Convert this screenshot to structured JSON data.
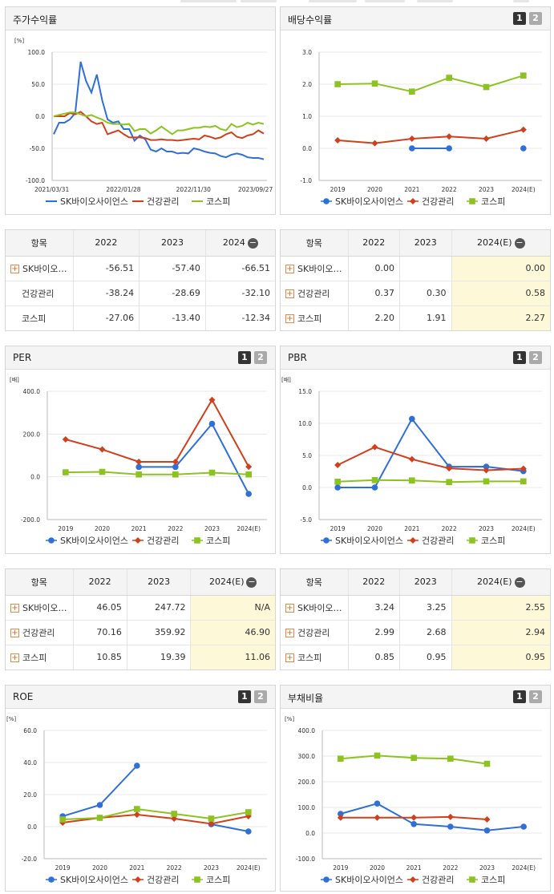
{
  "colors": {
    "sk": "#2f6fd8",
    "health": "#d0401c",
    "kospi": "#8cc321"
  },
  "buttons": {
    "one": "1",
    "two": "2"
  },
  "legend": {
    "sk": "SK바이오사이언스",
    "health": "건강관리",
    "kospi": "코스피"
  },
  "panels": {
    "stock": {
      "title": "주가수익률"
    },
    "div": {
      "title": "배당수익률"
    },
    "per": {
      "title": "PER"
    },
    "pbr": {
      "title": "PBR"
    },
    "roe": {
      "title": "ROE"
    },
    "debt": {
      "title": "부채비율"
    }
  },
  "tables": {
    "stock": {
      "h": [
        "항목",
        "2022",
        "2023",
        "2024"
      ],
      "rows": [
        [
          "SK바이오…",
          "-56.51",
          "-57.40",
          "-66.51"
        ],
        [
          "건강관리",
          "-38.24",
          "-28.69",
          "-32.10"
        ],
        [
          "코스피",
          "-27.06",
          "-13.40",
          "-12.34"
        ]
      ]
    },
    "div": {
      "h": [
        "항목",
        "2022",
        "2023",
        "2024(E)"
      ],
      "rows": [
        [
          "SK바이오…",
          "0.00",
          "",
          "0.00"
        ],
        [
          "건강관리",
          "0.37",
          "0.30",
          "0.58"
        ],
        [
          "코스피",
          "2.20",
          "1.91",
          "2.27"
        ]
      ]
    },
    "per": {
      "h": [
        "항목",
        "2022",
        "2023",
        "2024(E)"
      ],
      "rows": [
        [
          "SK바이오…",
          "46.05",
          "247.72",
          "N/A"
        ],
        [
          "건강관리",
          "70.16",
          "359.92",
          "46.90"
        ],
        [
          "코스피",
          "10.85",
          "19.39",
          "11.06"
        ]
      ]
    },
    "pbr": {
      "h": [
        "항목",
        "2022",
        "2023",
        "2024(E)"
      ],
      "rows": [
        [
          "SK바이오…",
          "3.24",
          "3.25",
          "2.55"
        ],
        [
          "건강관리",
          "2.99",
          "2.68",
          "2.94"
        ],
        [
          "코스피",
          "0.85",
          "0.95",
          "0.95"
        ]
      ]
    }
  },
  "chart_data": [
    {
      "id": "stock",
      "type": "line",
      "unit": "[%]",
      "ylim": [
        -100,
        100
      ],
      "yticks": [
        "100.0",
        "50.0",
        "0.0",
        "-50.0",
        "-100.0"
      ],
      "xticks": [
        "2021/03/31",
        "2022/01/28",
        "2022/11/30",
        "2023/09/27"
      ],
      "series": [
        {
          "name": "SK바이오사이언스",
          "values": [
            -28,
            -10,
            -10,
            -5,
            5,
            85,
            55,
            37,
            65,
            25,
            -5,
            -10,
            -8,
            -20,
            -20,
            -38,
            -30,
            -36,
            -52,
            -55,
            -50,
            -55,
            -55,
            -58,
            -57,
            -58,
            -50,
            -52,
            -55,
            -57,
            -58,
            -62,
            -64,
            -60,
            -58,
            -60,
            -64,
            -65,
            -65,
            -67
          ]
        },
        {
          "name": "건강관리",
          "values": [
            0,
            0,
            0,
            5,
            3,
            7,
            0,
            -8,
            -12,
            -10,
            -28,
            -25,
            -22,
            -28,
            -33,
            -33,
            -33,
            -34,
            -37,
            -37,
            -36,
            -37,
            -37,
            -38,
            -37,
            -36,
            -35,
            -36,
            -30,
            -32,
            -35,
            -33,
            -28,
            -25,
            -32,
            -34,
            -30,
            -28,
            -22,
            -27
          ]
        },
        {
          "name": "코스피",
          "values": [
            0,
            2,
            4,
            6,
            6,
            3,
            0,
            2,
            -2,
            -5,
            -10,
            -12,
            -12,
            -13,
            -12,
            -23,
            -20,
            -20,
            -27,
            -22,
            -16,
            -22,
            -28,
            -22,
            -22,
            -20,
            -18,
            -18,
            -16,
            -17,
            -15,
            -20,
            -22,
            -12,
            -17,
            -15,
            -10,
            -13,
            -10,
            -12
          ]
        }
      ]
    },
    {
      "id": "div",
      "type": "line",
      "unit": "",
      "ylim": [
        -1,
        3
      ],
      "yticks": [
        "3.0",
        "2.0",
        "1.0",
        "0.0",
        "-1.0"
      ],
      "categories": [
        "2019",
        "2020",
        "2021",
        "2022",
        "2023",
        "2024(E)"
      ],
      "series": [
        {
          "name": "SK바이오사이언스",
          "values": [
            null,
            null,
            0.0,
            0.0,
            null,
            0.0
          ]
        },
        {
          "name": "건강관리",
          "values": [
            0.25,
            0.16,
            0.3,
            0.37,
            0.3,
            0.58
          ]
        },
        {
          "name": "코스피",
          "values": [
            2.0,
            2.02,
            1.77,
            2.2,
            1.91,
            2.27
          ]
        }
      ]
    },
    {
      "id": "per",
      "type": "line",
      "unit": "[배]",
      "ylim": [
        -200,
        400
      ],
      "yticks": [
        "400.0",
        "200.0",
        "0.0",
        "-200.0"
      ],
      "categories": [
        "2019",
        "2020",
        "2021",
        "2022",
        "2023",
        "2024(E)"
      ],
      "series": [
        {
          "name": "SK바이오사이언스",
          "values": [
            null,
            null,
            46.05,
            46.05,
            247.72,
            -80
          ]
        },
        {
          "name": "건강관리",
          "values": [
            175,
            128,
            70.16,
            70.16,
            359.92,
            46.9
          ]
        },
        {
          "name": "코스피",
          "values": [
            21,
            23,
            10.85,
            10.85,
            19.39,
            11.06
          ]
        }
      ]
    },
    {
      "id": "pbr",
      "type": "line",
      "unit": "[배]",
      "ylim": [
        -5,
        15
      ],
      "yticks": [
        "15.0",
        "10.0",
        "5.0",
        "0.0",
        "-5.0"
      ],
      "categories": [
        "2019",
        "2020",
        "2021",
        "2022",
        "2023",
        "2024(E)"
      ],
      "series": [
        {
          "name": "SK바이오사이언스",
          "values": [
            0,
            0,
            10.7,
            3.24,
            3.25,
            2.55
          ]
        },
        {
          "name": "건강관리",
          "values": [
            3.5,
            6.3,
            4.4,
            2.99,
            2.68,
            2.94
          ]
        },
        {
          "name": "코스피",
          "values": [
            0.9,
            1.15,
            1.1,
            0.85,
            0.95,
            0.95
          ]
        }
      ]
    },
    {
      "id": "roe",
      "type": "line",
      "unit": "[%]",
      "ylim": [
        -20,
        60
      ],
      "yticks": [
        "60.0",
        "40.0",
        "20.0",
        "0.0",
        "-20.0"
      ],
      "categories": [
        "2019",
        "2020",
        "2021",
        "2022",
        "2023",
        "2024(E)"
      ],
      "series": [
        {
          "name": "SK바이오사이언스",
          "values": [
            6.5,
            13.5,
            38.0,
            null,
            1.5,
            -3.0
          ]
        },
        {
          "name": "건강관리",
          "values": [
            2.5,
            5.5,
            7.5,
            5.0,
            1.8,
            6.5
          ]
        },
        {
          "name": "코스피",
          "values": [
            4.5,
            5.5,
            11.0,
            8.0,
            5.0,
            9.0
          ]
        }
      ]
    },
    {
      "id": "debt",
      "type": "line",
      "unit": "[%]",
      "ylim": [
        -100,
        400
      ],
      "yticks": [
        "400.0",
        "300.0",
        "200.0",
        "100.0",
        "0.0",
        "-100.0"
      ],
      "categories": [
        "2019",
        "2020",
        "2021",
        "2022",
        "2023",
        "2024(E)"
      ],
      "series": [
        {
          "name": "SK바이오사이언스",
          "values": [
            75,
            115,
            35,
            25,
            10,
            25
          ]
        },
        {
          "name": "건강관리",
          "values": [
            60,
            60,
            60,
            63,
            53,
            null
          ]
        },
        {
          "name": "코스피",
          "values": [
            290,
            302,
            293,
            290,
            270,
            null
          ]
        }
      ]
    }
  ]
}
